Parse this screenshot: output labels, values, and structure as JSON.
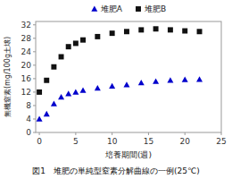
{
  "chart_data": {
    "type": "scatter",
    "title": "図1　堆肥の単純型窒素分解曲線の一例(25℃)",
    "xlabel": "培養期間(週)",
    "ylabel": "無機窒素(mg/100g土壌)",
    "xlim": [
      -0.5,
      25
    ],
    "ylim": [
      0,
      33
    ],
    "xticks": [
      0,
      5,
      10,
      15,
      20,
      25
    ],
    "yticks": [
      0,
      4,
      8,
      12,
      16,
      20,
      24,
      28,
      32
    ],
    "legend": "top",
    "x": [
      0,
      1,
      2,
      3,
      4,
      5,
      6,
      8,
      10,
      12,
      14,
      16,
      18,
      20,
      22
    ],
    "series": [
      {
        "name": "堆肥A",
        "color": "#0000CC",
        "marker": "triangle",
        "values": [
          4.0,
          5.5,
          8.5,
          10.5,
          11.5,
          12.0,
          12.5,
          13.2,
          13.8,
          14.2,
          14.8,
          15.2,
          15.5,
          15.7,
          15.8
        ]
      },
      {
        "name": "堆肥B",
        "color": "#111111",
        "marker": "square",
        "values": [
          12.0,
          15.5,
          19.5,
          22.5,
          25.5,
          26.5,
          27.5,
          28.5,
          29.5,
          30.0,
          30.5,
          30.8,
          30.5,
          30.2,
          30.0
        ]
      }
    ]
  }
}
